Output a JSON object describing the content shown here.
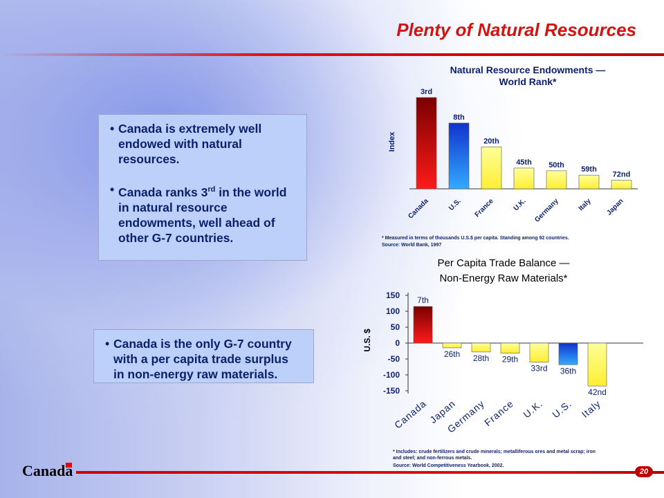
{
  "slide": {
    "title": "Plenty of Natural Resources",
    "logo_text": "Canada",
    "page_number": "20"
  },
  "bullets": {
    "box1": [
      {
        "lines": [
          "Canada is extremely well",
          "endowed with natural",
          "resources."
        ]
      },
      {
        "line1_pre": "Canada ranks 3",
        "line1_sup": "rd",
        "line1_post": " in the world",
        "lines": [
          "in natural resource",
          "endowments, well ahead of",
          "other G-7 countries."
        ]
      }
    ],
    "box2": {
      "lines": [
        "Canada is the only G-7 country",
        "with a per capita trade surplus",
        "in non-energy raw materials."
      ]
    }
  },
  "chart_data": [
    {
      "type": "bar",
      "title": "Natural Resource Endowments — World Rank*",
      "title_lines": [
        "Natural Resource Endowments —",
        "World Rank*"
      ],
      "ylabel": "Index",
      "categories": [
        "Canada",
        "U.S.",
        "France",
        "U.K.",
        "Germany",
        "Italy",
        "Japan"
      ],
      "ranks": [
        3,
        8,
        20,
        45,
        50,
        59,
        72
      ],
      "labels": [
        "3rd",
        "8th",
        "20th",
        "45th",
        "50th",
        "59th",
        "72nd"
      ],
      "footnotes": [
        "* Measured in terms of thousands U.S.$ per capita.   Standing among 92 countries.",
        "Source:  World Bank, 1997"
      ],
      "colors": {
        "canada": "#c00000",
        "us": "#1a66ff",
        "others": "#ffff66"
      }
    },
    {
      "type": "bar",
      "title": "Per Capita Trade Balance — Non-Energy Raw Materials*",
      "title_lines": [
        "Per Capita Trade Balance —",
        "Non-Energy Raw Materials*"
      ],
      "ylabel": "U.S. $",
      "ylim": [
        -150,
        150
      ],
      "yticks": [
        150,
        100,
        50,
        0,
        -50,
        -100,
        -150
      ],
      "categories": [
        "Canada",
        "Japan",
        "Germany",
        "France",
        "U.K.",
        "U.S.",
        "Italy"
      ],
      "values": [
        115,
        -15,
        -28,
        -32,
        -60,
        -68,
        -135
      ],
      "labels": [
        "7th",
        "26th",
        "28th",
        "29th",
        "33rd",
        "36th",
        "42nd"
      ],
      "footnotes": [
        "* Includes: crude fertilizers and crude minerals; metalliferous ores and metal scrap; iron",
        "and steel; and non-ferrous metals.",
        "Source: World Competitiveness Yearbook, 2002."
      ],
      "colors": {
        "canada": "#c00000",
        "us": "#1a66ff",
        "others": "#ffff66"
      }
    }
  ]
}
